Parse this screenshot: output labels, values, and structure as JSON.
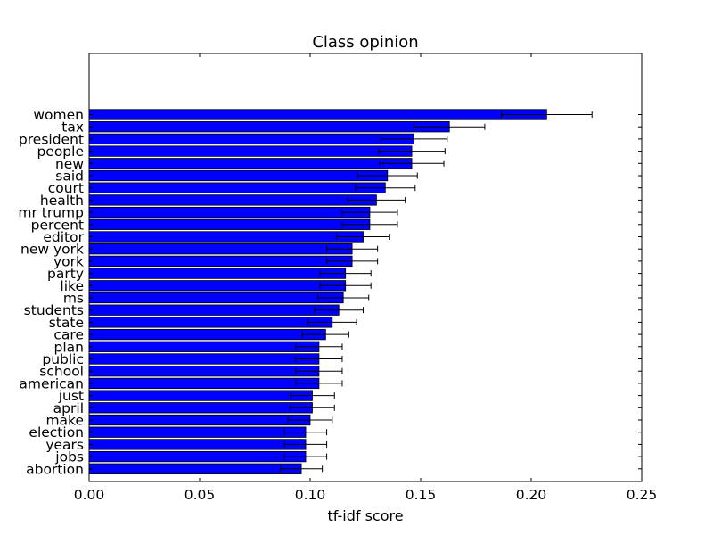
{
  "chart_data": {
    "type": "bar",
    "orientation": "horizontal",
    "title": "Class opinion",
    "xlabel": "tf-idf score",
    "ylabel": "",
    "xlim": [
      0.0,
      0.25
    ],
    "x_ticks": [
      "0.00",
      "0.05",
      "0.10",
      "0.15",
      "0.20",
      "0.25"
    ],
    "x_tick_values": [
      0.0,
      0.05,
      0.1,
      0.15,
      0.2,
      0.25
    ],
    "grid": false,
    "bar_color": "#0000ff",
    "categories": [
      "women",
      "tax",
      "president",
      "people",
      "new",
      "said",
      "court",
      "health",
      "mr trump",
      "percent",
      "editor",
      "new york",
      "york",
      "party",
      "like",
      "ms",
      "students",
      "state",
      "care",
      "plan",
      "public",
      "school",
      "american",
      "just",
      "april",
      "make",
      "election",
      "years",
      "jobs",
      "abortion"
    ],
    "values": [
      0.207,
      0.163,
      0.147,
      0.146,
      0.146,
      0.135,
      0.134,
      0.13,
      0.127,
      0.127,
      0.124,
      0.119,
      0.119,
      0.116,
      0.116,
      0.115,
      0.113,
      0.11,
      0.107,
      0.104,
      0.104,
      0.104,
      0.104,
      0.101,
      0.101,
      0.1,
      0.098,
      0.098,
      0.098,
      0.096
    ],
    "errors": [
      0.0205,
      0.016,
      0.015,
      0.015,
      0.0145,
      0.0135,
      0.0135,
      0.013,
      0.0125,
      0.0125,
      0.012,
      0.0115,
      0.0115,
      0.0115,
      0.0115,
      0.0115,
      0.011,
      0.011,
      0.0105,
      0.0105,
      0.0105,
      0.0105,
      0.0105,
      0.01,
      0.01,
      0.01,
      0.0095,
      0.0095,
      0.0095,
      0.0095
    ]
  }
}
